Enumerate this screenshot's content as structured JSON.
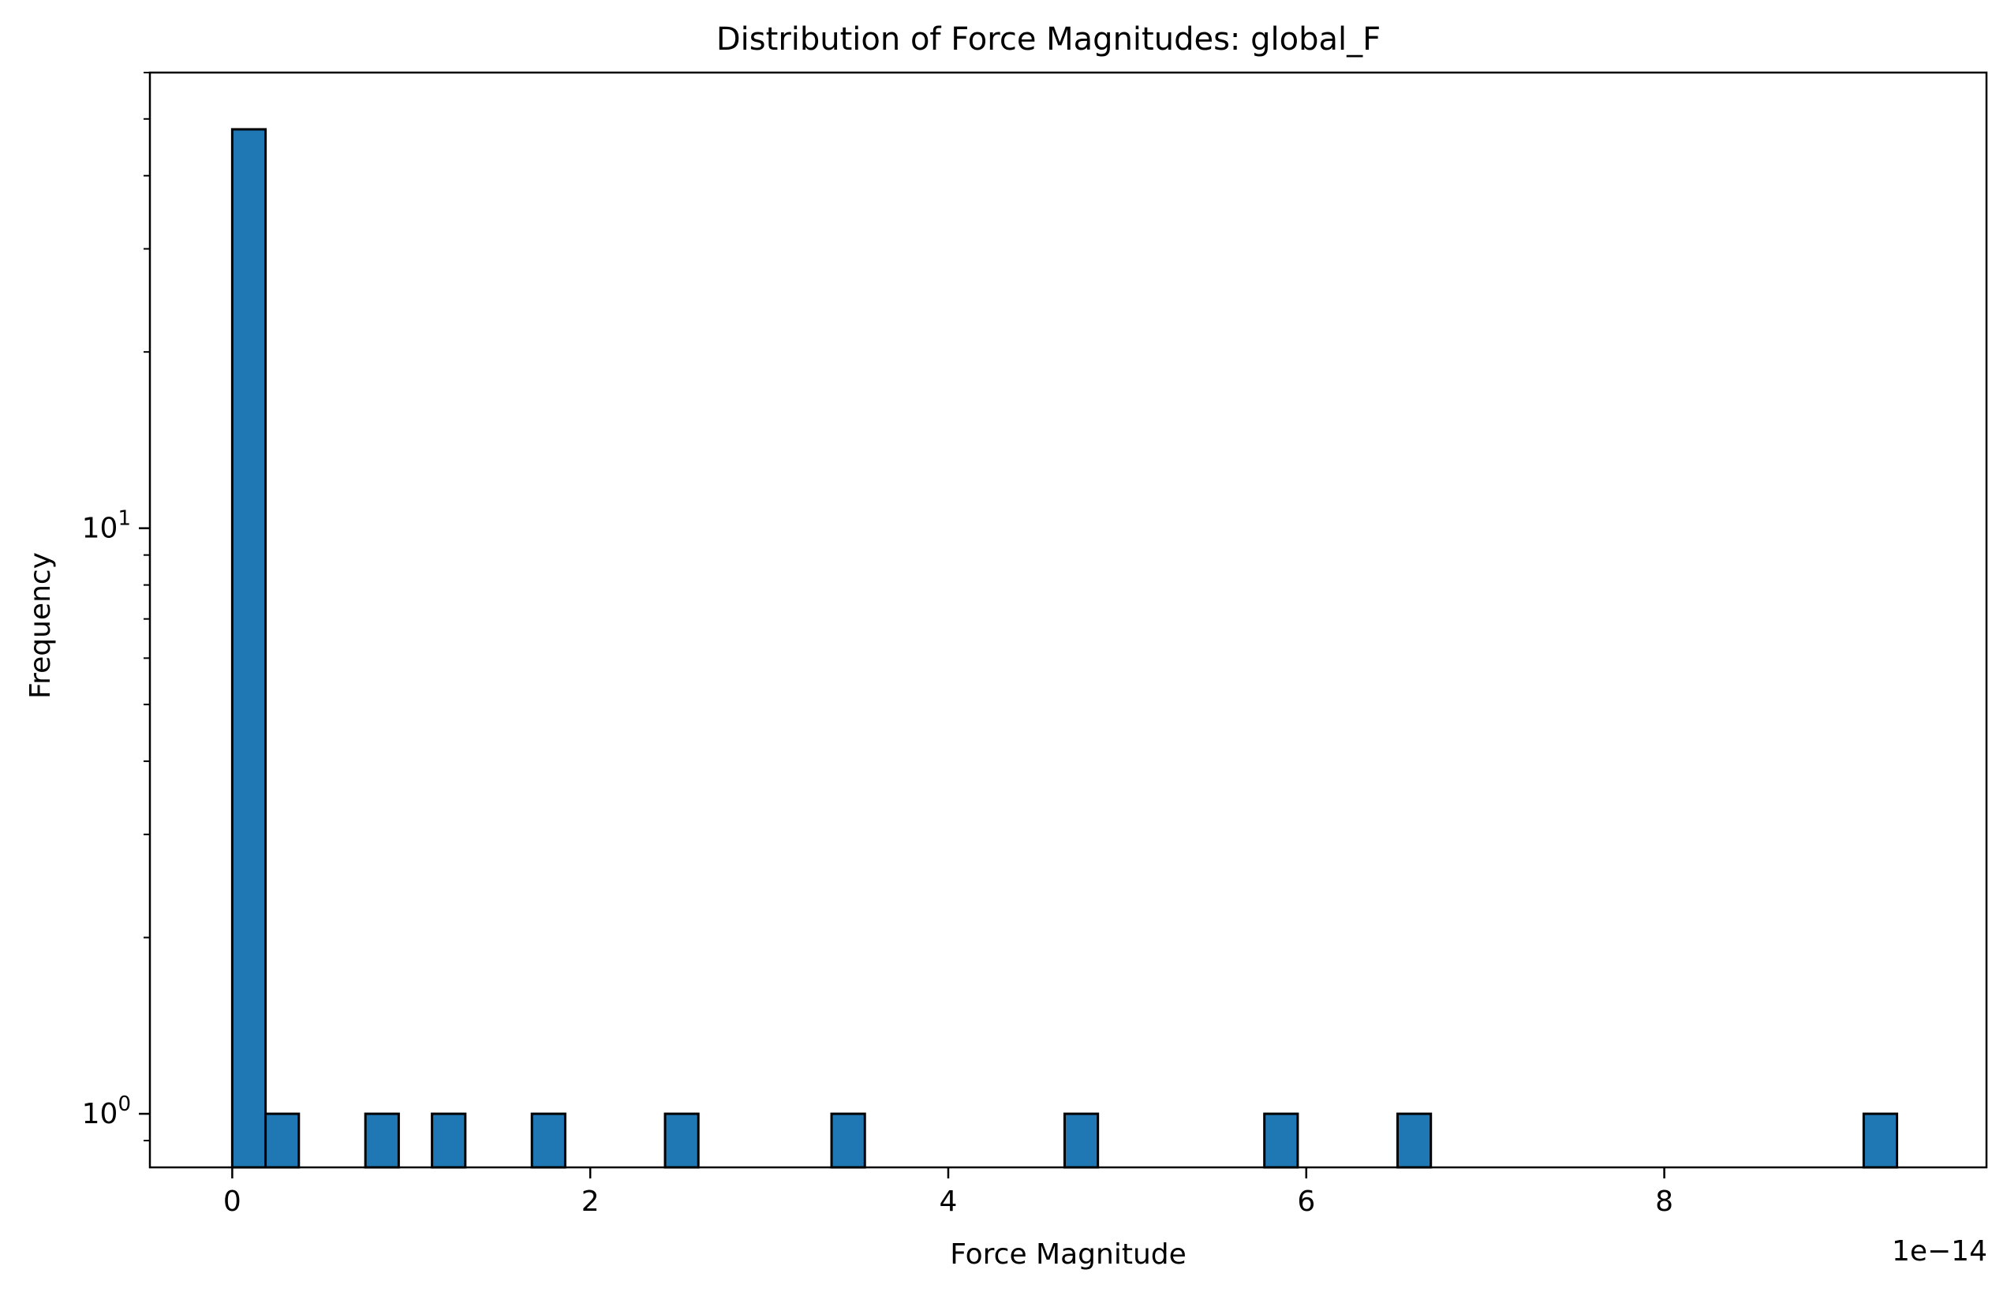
{
  "chart_data": {
    "type": "bar",
    "title": "Distribution of Force Magnitudes: global_F",
    "xlabel": "Force Magnitude",
    "ylabel": "Frequency",
    "x_offset_label": "1e−14",
    "xscale": "linear",
    "yscale": "log",
    "xlim": [
      -0.46,
      9.8
    ],
    "ylim": [
      0.81,
      60
    ],
    "grid": false,
    "x_ticks": [
      0,
      2,
      4,
      6,
      8
    ],
    "x_tick_labels": [
      "0",
      "2",
      "4",
      "6",
      "8"
    ],
    "y_tick_labels": [
      {
        "value": 1,
        "base": "10",
        "exp": "0"
      },
      {
        "value": 10,
        "base": "10",
        "exp": "1"
      }
    ],
    "bin_width": 0.186,
    "bins": [
      {
        "left": 0.0,
        "count": 48
      },
      {
        "left": 0.186,
        "count": 1
      },
      {
        "left": 0.744,
        "count": 1
      },
      {
        "left": 1.116,
        "count": 1
      },
      {
        "left": 1.674,
        "count": 1
      },
      {
        "left": 2.418,
        "count": 1
      },
      {
        "left": 3.348,
        "count": 1
      },
      {
        "left": 4.65,
        "count": 1
      },
      {
        "left": 5.766,
        "count": 1
      },
      {
        "left": 6.51,
        "count": 1
      },
      {
        "left": 9.114,
        "count": 1
      }
    ],
    "colors": {
      "bar_fill": "#1f77b4",
      "bar_edge": "#000000"
    }
  }
}
